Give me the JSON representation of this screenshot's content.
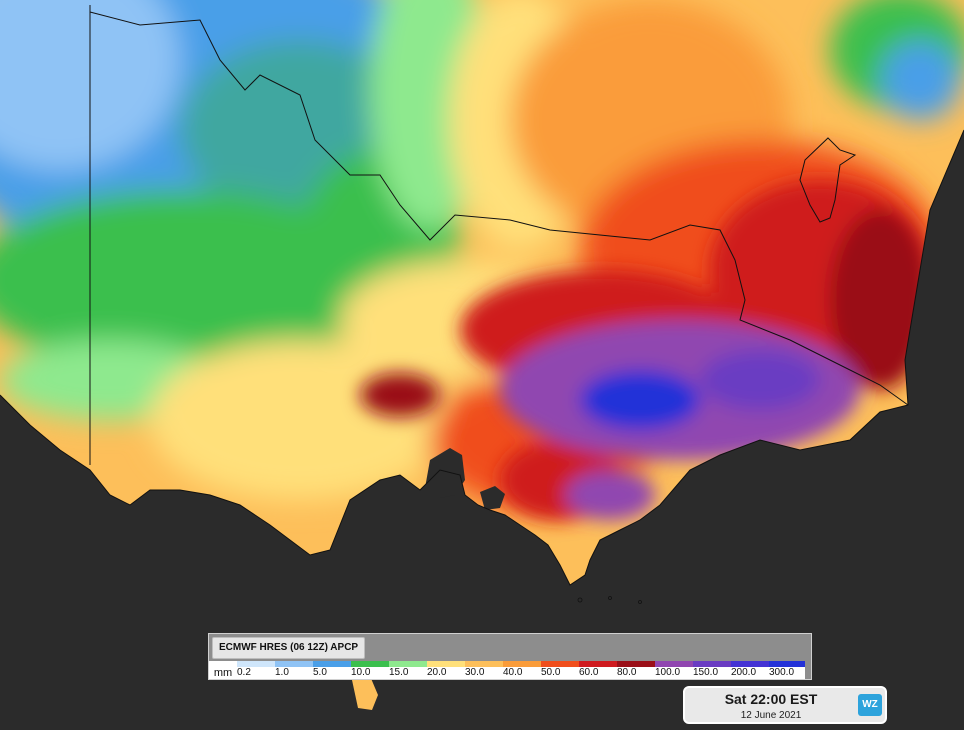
{
  "map": {
    "palette": {
      "ocean": "#2b2b2b",
      "border": "#111111",
      "lightblue": "#8fc3f5",
      "blue": "#4a9fe8",
      "teal": "#3fa7a0",
      "green": "#3bbf4e",
      "lightgreen": "#8ee98e",
      "yellow": "#ffe07a",
      "lightorange": "#fdbf5a",
      "orange": "#fa9c3a",
      "redorange": "#f04e1c",
      "red": "#cf1a1f",
      "darkred": "#9a0f18",
      "purple": "#9046b0",
      "violet": "#6a3cc2",
      "deepblue": "#2432d8"
    }
  },
  "legend": {
    "title": "ECMWF HRES (06 12Z) APCP",
    "unit": "mm",
    "items": [
      {
        "label": "0.2",
        "color": "#cfe6fb"
      },
      {
        "label": "1.0",
        "color": "#8fc3f5"
      },
      {
        "label": "5.0",
        "color": "#4a9fe8"
      },
      {
        "label": "10.0",
        "color": "#3bbf4e"
      },
      {
        "label": "15.0",
        "color": "#8ee98e"
      },
      {
        "label": "20.0",
        "color": "#ffe07a"
      },
      {
        "label": "30.0",
        "color": "#fdbf5a"
      },
      {
        "label": "40.0",
        "color": "#fa9c3a"
      },
      {
        "label": "50.0",
        "color": "#f04e1c"
      },
      {
        "label": "60.0",
        "color": "#cf1a1f"
      },
      {
        "label": "80.0",
        "color": "#9a0f18"
      },
      {
        "label": "100.0",
        "color": "#9046b0"
      },
      {
        "label": "150.0",
        "color": "#6a3cc2"
      },
      {
        "label": "200.0",
        "color": "#4433d4"
      },
      {
        "label": "300.0",
        "color": "#2432d8"
      }
    ]
  },
  "timebox": {
    "time": "Sat 22:00 EST",
    "date": "12 June 2021",
    "logo_text": "WZ"
  }
}
